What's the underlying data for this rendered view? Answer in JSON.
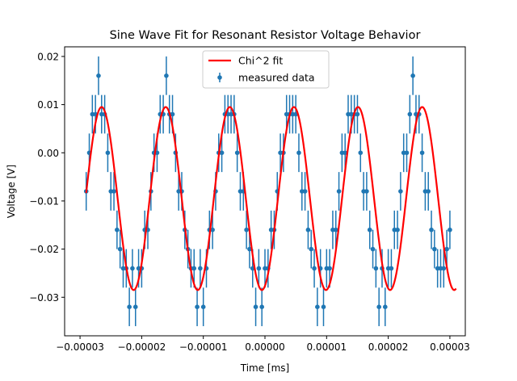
{
  "chart_data": {
    "type": "scatter",
    "title": "Sine Wave Fit for Resonant Resistor Voltage Behavior",
    "xlabel": "Time [ms]",
    "ylabel": "Voltage [V]",
    "xlim": [
      -3.25e-05,
      3.25e-05
    ],
    "ylim": [
      -0.038,
      0.022
    ],
    "xticks": [
      -3e-05,
      -2e-05,
      -1e-05,
      0.0,
      1e-05,
      2e-05,
      3e-05
    ],
    "xtick_labels": [
      "−0.00003",
      "−0.00002",
      "−0.00001",
      "0.00000",
      "0.00001",
      "0.00002",
      "0.00003"
    ],
    "yticks": [
      -0.03,
      -0.02,
      -0.01,
      0.0,
      0.01,
      0.02
    ],
    "ytick_labels": [
      "−0.03",
      "−0.02",
      "−0.01",
      "0.00",
      "0.01",
      "0.02"
    ],
    "grid": false,
    "legend_position": "top-center",
    "series": [
      {
        "name": "Chi^2 fit",
        "kind": "line",
        "color": "#ff0000",
        "fit": {
          "amplitude": 0.019,
          "offset": -0.0095,
          "period": 1.04e-05,
          "peak_time": -2.65e-05
        },
        "x_range": [
          -2.9e-05,
          3.1e-05
        ]
      },
      {
        "name": "measured data",
        "kind": "errorbar",
        "color": "#1f77b4",
        "y_error": 0.004,
        "x": [
          -2.9e-05,
          -2.85e-05,
          -2.8e-05,
          -2.75e-05,
          -2.7e-05,
          -2.65e-05,
          -2.6e-05,
          -2.55e-05,
          -2.5e-05,
          -2.45e-05,
          -2.4e-05,
          -2.35e-05,
          -2.3e-05,
          -2.25e-05,
          -2.2e-05,
          -2.15e-05,
          -2.1e-05,
          -2.05e-05,
          -2e-05,
          -1.95e-05,
          -1.9e-05,
          -1.85e-05,
          -1.8e-05,
          -1.75e-05,
          -1.7e-05,
          -1.65e-05,
          -1.6e-05,
          -1.55e-05,
          -1.5e-05,
          -1.45e-05,
          -1.4e-05,
          -1.35e-05,
          -1.3e-05,
          -1.25e-05,
          -1.2e-05,
          -1.15e-05,
          -1.1e-05,
          -1.05e-05,
          -1e-05,
          -9.5e-06,
          -9e-06,
          -8.5e-06,
          -8e-06,
          -7.5e-06,
          -7e-06,
          -6.5e-06,
          -6e-06,
          -5.5e-06,
          -5e-06,
          -4.5e-06,
          -4e-06,
          -3.5e-06,
          -3e-06,
          -2.5e-06,
          -2e-06,
          -1.5e-06,
          -1e-06,
          -5e-07,
          0.0,
          5e-07,
          1e-06,
          1.5e-06,
          2e-06,
          2.5e-06,
          3e-06,
          3.5e-06,
          4e-06,
          4.5e-06,
          5e-06,
          5.5e-06,
          6e-06,
          6.5e-06,
          7e-06,
          7.5e-06,
          8e-06,
          8.5e-06,
          9e-06,
          9.5e-06,
          1e-05,
          1.05e-05,
          1.1e-05,
          1.15e-05,
          1.2e-05,
          1.25e-05,
          1.3e-05,
          1.35e-05,
          1.4e-05,
          1.45e-05,
          1.5e-05,
          1.55e-05,
          1.6e-05,
          1.65e-05,
          1.7e-05,
          1.75e-05,
          1.8e-05,
          1.85e-05,
          1.9e-05,
          1.95e-05,
          2e-05,
          2.05e-05,
          2.1e-05,
          2.15e-05,
          2.2e-05,
          2.25e-05,
          2.3e-05,
          2.35e-05,
          2.4e-05,
          2.45e-05,
          2.5e-05,
          2.55e-05,
          2.6e-05,
          2.65e-05,
          2.7e-05,
          2.75e-05,
          2.8e-05,
          2.85e-05,
          2.9e-05,
          2.95e-05,
          3e-05
        ],
        "y": [
          -0.008,
          0.0,
          0.008,
          0.008,
          0.016,
          0.008,
          0.008,
          0.0,
          -0.008,
          -0.008,
          -0.016,
          -0.02,
          -0.024,
          -0.024,
          -0.032,
          -0.024,
          -0.032,
          -0.024,
          -0.024,
          -0.016,
          -0.016,
          -0.008,
          0.0,
          0.0,
          0.008,
          0.008,
          0.016,
          0.008,
          0.008,
          0.0,
          -0.008,
          -0.008,
          -0.016,
          -0.02,
          -0.024,
          -0.024,
          -0.032,
          -0.024,
          -0.032,
          -0.024,
          -0.016,
          -0.016,
          -0.008,
          0.0,
          0.0,
          0.008,
          0.008,
          0.008,
          0.008,
          0.0,
          -0.008,
          -0.008,
          -0.016,
          -0.02,
          -0.024,
          -0.032,
          -0.024,
          -0.032,
          -0.024,
          -0.024,
          -0.016,
          -0.016,
          -0.008,
          0.0,
          0.0,
          0.008,
          0.008,
          0.008,
          0.008,
          0.0,
          -0.008,
          -0.008,
          -0.016,
          -0.02,
          -0.024,
          -0.032,
          -0.024,
          -0.032,
          -0.024,
          -0.024,
          -0.016,
          -0.016,
          -0.008,
          0.0,
          0.0,
          0.008,
          0.008,
          0.008,
          0.008,
          0.0,
          -0.008,
          -0.008,
          -0.016,
          -0.02,
          -0.024,
          -0.032,
          -0.024,
          -0.032,
          -0.024,
          -0.024,
          -0.016,
          -0.016,
          -0.008,
          0.0,
          0.0,
          0.008,
          0.016,
          0.008,
          0.008,
          0.0,
          -0.008,
          -0.008,
          -0.016,
          -0.02,
          -0.024,
          -0.024,
          -0.024,
          -0.02,
          -0.016
        ]
      }
    ]
  }
}
